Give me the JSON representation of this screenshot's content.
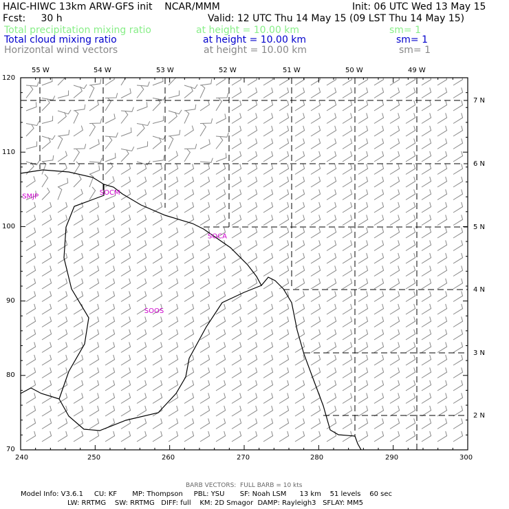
{
  "header": {
    "title": "HAIC-HIWC 13km ARW-GFS init    NCAR/MMM",
    "init": "Init: 06 UTC Wed 13 May 15",
    "fcst": "Fcst:     30 h",
    "valid": "Valid: 12 UTC Thu 14 May 15 (09 LST Thu 14 May 15)",
    "fields": [
      {
        "name": "Total precipitation mixing ratio",
        "height": "at height = 10.00 km",
        "sm": "sm= 1",
        "color": "#88ee88"
      },
      {
        "name": "Total cloud mixing ratio",
        "height": "at height = 10.00 km",
        "sm": "sm= 1",
        "color": "#0000cc"
      },
      {
        "name": "Horizontal wind vectors",
        "height": "at height = 10.00 km",
        "sm": "sm= 1",
        "color": "#888888"
      }
    ]
  },
  "map": {
    "x_ticks": [
      "240",
      "250",
      "260",
      "270",
      "280",
      "290",
      "300"
    ],
    "y_ticks": [
      "70",
      "80",
      "90",
      "100",
      "110",
      "120"
    ],
    "lon_labels": [
      "55 W",
      "54 W",
      "53 W",
      "52 W",
      "51 W",
      "50 W",
      "49 W"
    ],
    "lat_labels": [
      "7 N",
      "6 N",
      "5 N",
      "4 N",
      "3 N",
      "2 N"
    ],
    "stations": [
      {
        "id": "SMJP",
        "x": 240.2,
        "y": 103.8
      },
      {
        "id": "SOCM",
        "x": 250.6,
        "y": 104.3
      },
      {
        "id": "SOCA",
        "x": 265.1,
        "y": 98.4
      },
      {
        "id": "SOOS",
        "x": 256.6,
        "y": 88.4
      }
    ],
    "barb_color": "#888888",
    "station_color": "#cc00cc"
  },
  "footer": {
    "barb": "BARB VECTORS:  FULL BARB = 10 kts",
    "line1": "Model Info: V3.6.1     CU: KF       MP: Thompson     PBL: YSU       SF: Noah LSM      13 km    51 levels    60 sec",
    "line2": "LW: RRTMG    SW: RRTMG   DIFF: full    KM: 2D Smagor  DAMP: Rayleigh3   SFLAY: MM5"
  }
}
